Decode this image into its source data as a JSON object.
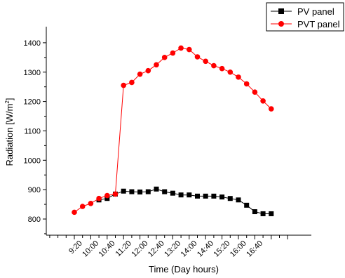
{
  "chart_data": {
    "type": "line",
    "xlabel": "Time (Day hours)",
    "ylabel": "Radiation [W/m",
    "ylabel_sup": "2",
    "ylabel_end": "]",
    "ylim": [
      750,
      1440
    ],
    "y_ticks": [
      800,
      900,
      1000,
      1100,
      1200,
      1300,
      1400
    ],
    "x_tick_labels": [
      "9:20",
      "10:00",
      "10:40",
      "11:20",
      "12:00",
      "12:40",
      "13:20",
      "14:00",
      "14:40",
      "15:20",
      "16:00",
      "16:40"
    ],
    "x_label_every": 2,
    "grid": false,
    "legend_position": "top-right",
    "series": [
      {
        "name": "PV panel",
        "color": "#000000",
        "marker": "square",
        "values": [
          null,
          null,
          null,
          865,
          870,
          885,
          895,
          893,
          892,
          893,
          902,
          893,
          888,
          882,
          882,
          878,
          878,
          878,
          875,
          870,
          865,
          847,
          825,
          818,
          818
        ]
      },
      {
        "name": "PVT panel",
        "color": "#ff0000",
        "marker": "circle",
        "values": [
          823,
          843,
          853,
          870,
          880,
          885,
          1255,
          1265,
          1293,
          1305,
          1325,
          1350,
          1365,
          1382,
          1377,
          1352,
          1337,
          1322,
          1312,
          1300,
          1283,
          1260,
          1232,
          1202,
          1175
        ]
      }
    ]
  }
}
